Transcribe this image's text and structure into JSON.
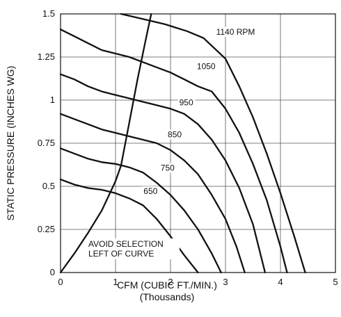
{
  "chart_data": {
    "type": "line",
    "title": "",
    "xlabel": "CFM (CUBIC FT./MIN.)",
    "xlabel_sub": "(Thousands)",
    "ylabel": "STATIC PRESSURE (INCHES WG)",
    "xlim": [
      0,
      5
    ],
    "ylim": [
      0,
      1.5
    ],
    "x_ticks": [
      "0",
      "1",
      "2",
      "3",
      "4",
      "5"
    ],
    "y_ticks": [
      "0",
      "0.25",
      "0.5",
      "0.75",
      "1",
      "1.25",
      "1.5"
    ],
    "grid": true,
    "series": [
      {
        "name": "650",
        "points": [
          [
            0,
            0.54
          ],
          [
            0.25,
            0.51
          ],
          [
            0.5,
            0.49
          ],
          [
            0.75,
            0.48
          ],
          [
            1.0,
            0.46
          ],
          [
            1.25,
            0.43
          ],
          [
            1.5,
            0.39
          ],
          [
            1.75,
            0.31
          ],
          [
            2.0,
            0.21
          ],
          [
            2.25,
            0.1
          ],
          [
            2.5,
            0.0
          ]
        ]
      },
      {
        "name": "750",
        "points": [
          [
            0,
            0.72
          ],
          [
            0.25,
            0.69
          ],
          [
            0.5,
            0.66
          ],
          [
            0.75,
            0.64
          ],
          [
            1.0,
            0.63
          ],
          [
            1.25,
            0.61
          ],
          [
            1.5,
            0.58
          ],
          [
            1.75,
            0.52
          ],
          [
            2.0,
            0.45
          ],
          [
            2.25,
            0.36
          ],
          [
            2.5,
            0.25
          ],
          [
            2.75,
            0.11
          ],
          [
            2.92,
            0.0
          ]
        ]
      },
      {
        "name": "850",
        "points": [
          [
            0,
            0.92
          ],
          [
            0.25,
            0.89
          ],
          [
            0.5,
            0.86
          ],
          [
            0.75,
            0.83
          ],
          [
            1.0,
            0.81
          ],
          [
            1.25,
            0.79
          ],
          [
            1.5,
            0.77
          ],
          [
            1.75,
            0.75
          ],
          [
            2.0,
            0.71
          ],
          [
            2.25,
            0.65
          ],
          [
            2.5,
            0.57
          ],
          [
            2.75,
            0.45
          ],
          [
            3.0,
            0.31
          ],
          [
            3.2,
            0.15
          ],
          [
            3.35,
            0.0
          ]
        ]
      },
      {
        "name": "950",
        "points": [
          [
            0,
            1.15
          ],
          [
            0.25,
            1.12
          ],
          [
            0.5,
            1.08
          ],
          [
            0.75,
            1.05
          ],
          [
            1.0,
            1.03
          ],
          [
            1.25,
            1.01
          ],
          [
            1.5,
            0.99
          ],
          [
            1.75,
            0.97
          ],
          [
            2.0,
            0.95
          ],
          [
            2.25,
            0.92
          ],
          [
            2.5,
            0.86
          ],
          [
            2.75,
            0.77
          ],
          [
            3.0,
            0.65
          ],
          [
            3.25,
            0.49
          ],
          [
            3.5,
            0.28
          ],
          [
            3.72,
            0.0
          ]
        ]
      },
      {
        "name": "1050",
        "points": [
          [
            0,
            1.41
          ],
          [
            0.25,
            1.37
          ],
          [
            0.5,
            1.33
          ],
          [
            0.75,
            1.29
          ],
          [
            1.0,
            1.27
          ],
          [
            1.25,
            1.25
          ],
          [
            1.5,
            1.22
          ],
          [
            1.75,
            1.19
          ],
          [
            2.0,
            1.16
          ],
          [
            2.25,
            1.12
          ],
          [
            2.5,
            1.08
          ],
          [
            2.75,
            1.05
          ],
          [
            3.0,
            0.95
          ],
          [
            3.25,
            0.81
          ],
          [
            3.5,
            0.63
          ],
          [
            3.75,
            0.42
          ],
          [
            4.0,
            0.15
          ],
          [
            4.12,
            0.0
          ]
        ]
      },
      {
        "name": "1140 RPM",
        "points": [
          [
            1.1,
            1.5
          ],
          [
            1.5,
            1.47
          ],
          [
            1.9,
            1.44
          ],
          [
            2.3,
            1.4
          ],
          [
            2.6,
            1.36
          ],
          [
            2.8,
            1.3
          ],
          [
            3.0,
            1.24
          ],
          [
            3.25,
            1.08
          ],
          [
            3.5,
            0.9
          ],
          [
            3.75,
            0.69
          ],
          [
            4.0,
            0.46
          ],
          [
            4.25,
            0.21
          ],
          [
            4.45,
            0.0
          ]
        ]
      }
    ],
    "selection_boundary": [
      [
        0,
        0.0
      ],
      [
        0.25,
        0.11
      ],
      [
        0.5,
        0.23
      ],
      [
        0.75,
        0.36
      ],
      [
        1.0,
        0.53
      ],
      [
        1.1,
        0.62
      ],
      [
        1.25,
        0.87
      ],
      [
        1.4,
        1.12
      ],
      [
        1.55,
        1.35
      ],
      [
        1.65,
        1.5
      ]
    ],
    "annotation": [
      "AVOID SELECTION",
      "LEFT OF CURVE"
    ],
    "legend": "inline-labels"
  }
}
